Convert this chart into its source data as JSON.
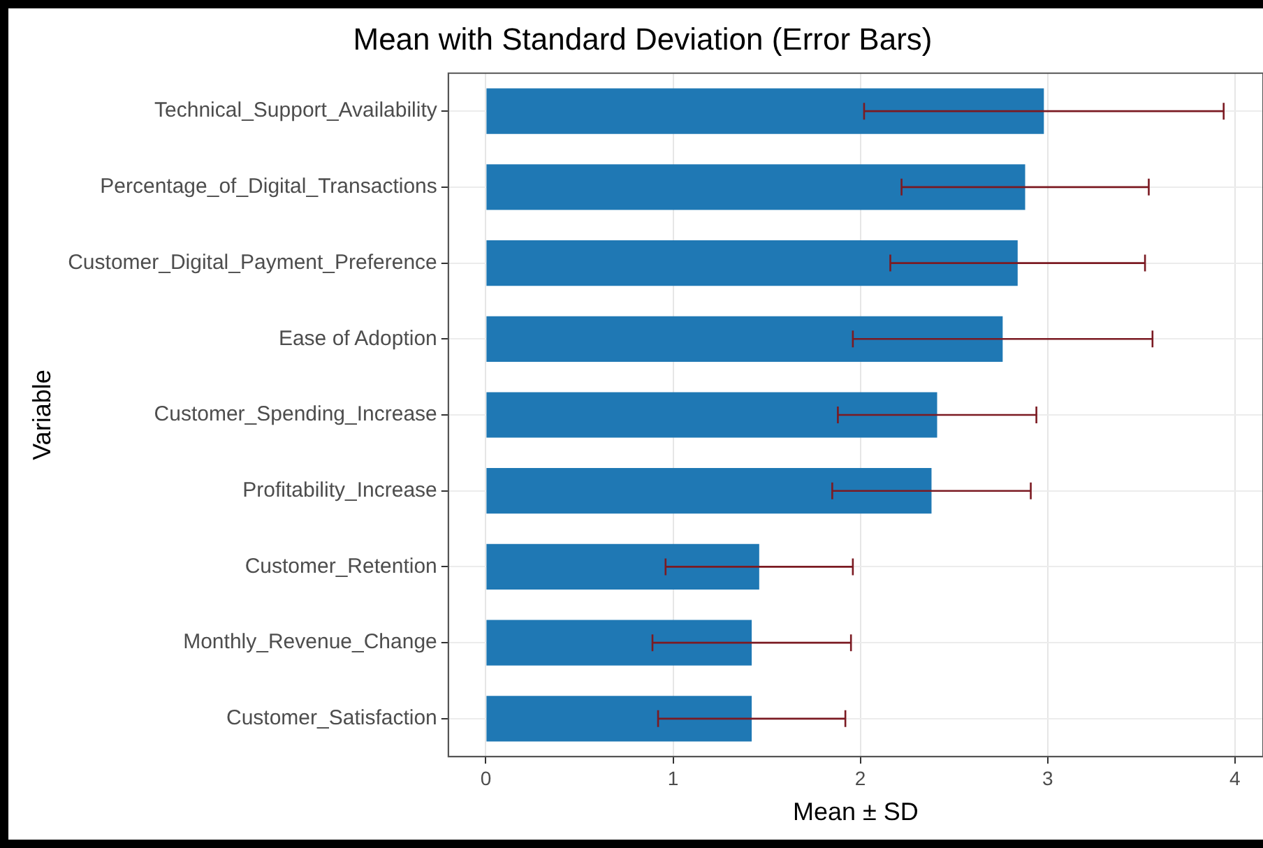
{
  "chart_data": {
    "type": "bar",
    "orientation": "horizontal",
    "title": "Mean with Standard Deviation (Error Bars)",
    "xlabel": "Mean ± SD",
    "ylabel": "Variable",
    "categories": [
      "Technical_Support_Availability",
      "Percentage_of_Digital_Transactions",
      "Customer_Digital_Payment_Preference",
      "Ease of Adoption",
      "Customer_Spending_Increase",
      "Profitability_Increase",
      "Customer_Retention",
      "Monthly_Revenue_Change",
      "Customer_Satisfaction"
    ],
    "values": [
      2.98,
      2.88,
      2.84,
      2.76,
      2.41,
      2.38,
      1.46,
      1.42,
      1.42
    ],
    "errors": [
      0.96,
      0.66,
      0.68,
      0.8,
      0.53,
      0.53,
      0.5,
      0.53,
      0.5
    ],
    "color": "#1f78b4",
    "xlim": [
      -0.2,
      4.15
    ],
    "xticks": [
      0,
      1,
      2,
      3,
      4
    ],
    "grid": true,
    "legend": false
  }
}
